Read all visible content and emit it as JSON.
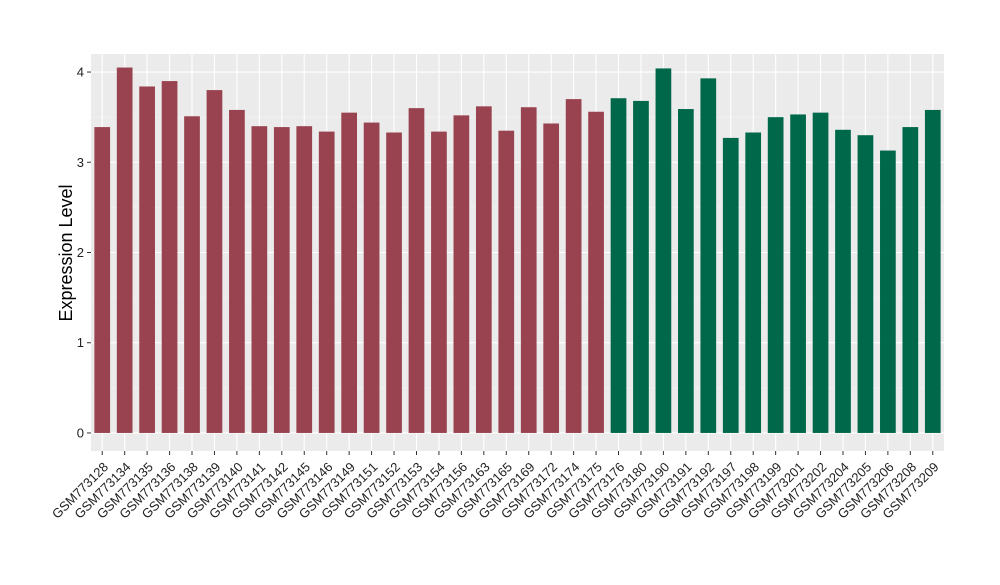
{
  "chart_data": {
    "type": "bar",
    "xlabel": "",
    "ylabel": "Expression Level",
    "ylim": [
      -0.2,
      4.2
    ],
    "yticks": [
      0,
      1,
      2,
      3,
      4
    ],
    "grid": true,
    "categories": [
      "GSM773128",
      "GSM773134",
      "GSM773135",
      "GSM773136",
      "GSM773138",
      "GSM773139",
      "GSM773140",
      "GSM773141",
      "GSM773142",
      "GSM773145",
      "GSM773146",
      "GSM773149",
      "GSM773151",
      "GSM773152",
      "GSM773153",
      "GSM773154",
      "GSM773156",
      "GSM773163",
      "GSM773165",
      "GSM773169",
      "GSM773172",
      "GSM773174",
      "GSM773175",
      "GSM773176",
      "GSM773180",
      "GSM773190",
      "GSM773191",
      "GSM773192",
      "GSM773197",
      "GSM773198",
      "GSM773199",
      "GSM773201",
      "GSM773202",
      "GSM773204",
      "GSM773205",
      "GSM773206",
      "GSM773208",
      "GSM773209"
    ],
    "values": [
      3.39,
      4.05,
      3.84,
      3.9,
      3.51,
      3.8,
      3.58,
      3.4,
      3.39,
      3.4,
      3.34,
      3.55,
      3.44,
      3.33,
      3.6,
      3.34,
      3.52,
      3.62,
      3.35,
      3.61,
      3.43,
      3.7,
      3.56,
      3.71,
      3.68,
      4.04,
      3.59,
      3.93,
      3.27,
      3.33,
      3.5,
      3.53,
      3.55,
      3.36,
      3.3,
      3.13,
      3.39,
      3.58
    ],
    "groups": [
      {
        "color": "#9a4350",
        "from": 0,
        "to": 22
      },
      {
        "color": "#00684a",
        "from": 23,
        "to": 37
      }
    ],
    "colors": {
      "panel": "#ebebeb",
      "grid_major": "#ffffff",
      "grid_minor": "#f5f5f5",
      "tick": "#333333"
    }
  }
}
